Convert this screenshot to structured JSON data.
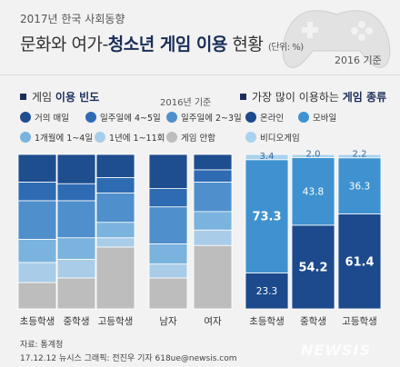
{
  "header": {
    "kicker": "2017년 한국 사회동향",
    "title_prefix": "문화와 여가-",
    "title_bold": "청소년 게임 이용",
    "title_suffix": " 현황",
    "unit": "(단위: %)",
    "year": "2016 기준"
  },
  "left_section": {
    "title_prefix": "게임 ",
    "title_bold": "이용 빈도",
    "note": "2016년 기준"
  },
  "right_section": {
    "title_prefix": "가장 많이 이용하는 ",
    "title_bold": "게임 종류"
  },
  "footer": {
    "source": "자료: 통계청",
    "credit": "17.12.12 뉴시스 그래픽: 전진우 기자 618ue@newsis.com"
  },
  "logo": "NEWSIS",
  "colors": {
    "freq": [
      "#1f4e8f",
      "#2f6bb3",
      "#4f8fcc",
      "#7ab3dd",
      "#a9cde8",
      "#bdbdbd"
    ],
    "type": [
      "#1c4a8c",
      "#3f92cf",
      "#a9d2ec"
    ]
  },
  "chart_data": [
    {
      "type": "bar",
      "stacked": true,
      "title": "게임 이용 빈도",
      "categories": [
        "초등학생",
        "중학생",
        "고등학생",
        "남자",
        "여자"
      ],
      "series": [
        {
          "name": "거의 매일",
          "values": [
            18,
            19,
            15,
            22,
            10
          ]
        },
        {
          "name": "일주일에 4~5일",
          "values": [
            12,
            11,
            10,
            12,
            8
          ]
        },
        {
          "name": "일주일에 2~3일",
          "values": [
            25,
            24,
            19,
            24,
            19
          ]
        },
        {
          "name": "1개월에 1~4일",
          "values": [
            15,
            14,
            10,
            13,
            12
          ]
        },
        {
          "name": "1년에 1~11회",
          "values": [
            13,
            12,
            6,
            9,
            10
          ]
        },
        {
          "name": "게임 안함",
          "values": [
            17,
            20,
            40,
            20,
            41
          ]
        }
      ],
      "ylim": [
        0,
        100
      ]
    },
    {
      "type": "bar",
      "stacked": true,
      "title": "가장 많이 이용하는 게임 종류",
      "categories": [
        "초등학생",
        "중학생",
        "고등학생"
      ],
      "series": [
        {
          "name": "온라인",
          "values": [
            23.3,
            54.2,
            61.4
          ]
        },
        {
          "name": "모바일",
          "values": [
            73.3,
            43.8,
            36.3
          ]
        },
        {
          "name": "비디오게임",
          "values": [
            3.4,
            2.0,
            2.2
          ]
        }
      ],
      "ylim": [
        0,
        100
      ]
    }
  ]
}
